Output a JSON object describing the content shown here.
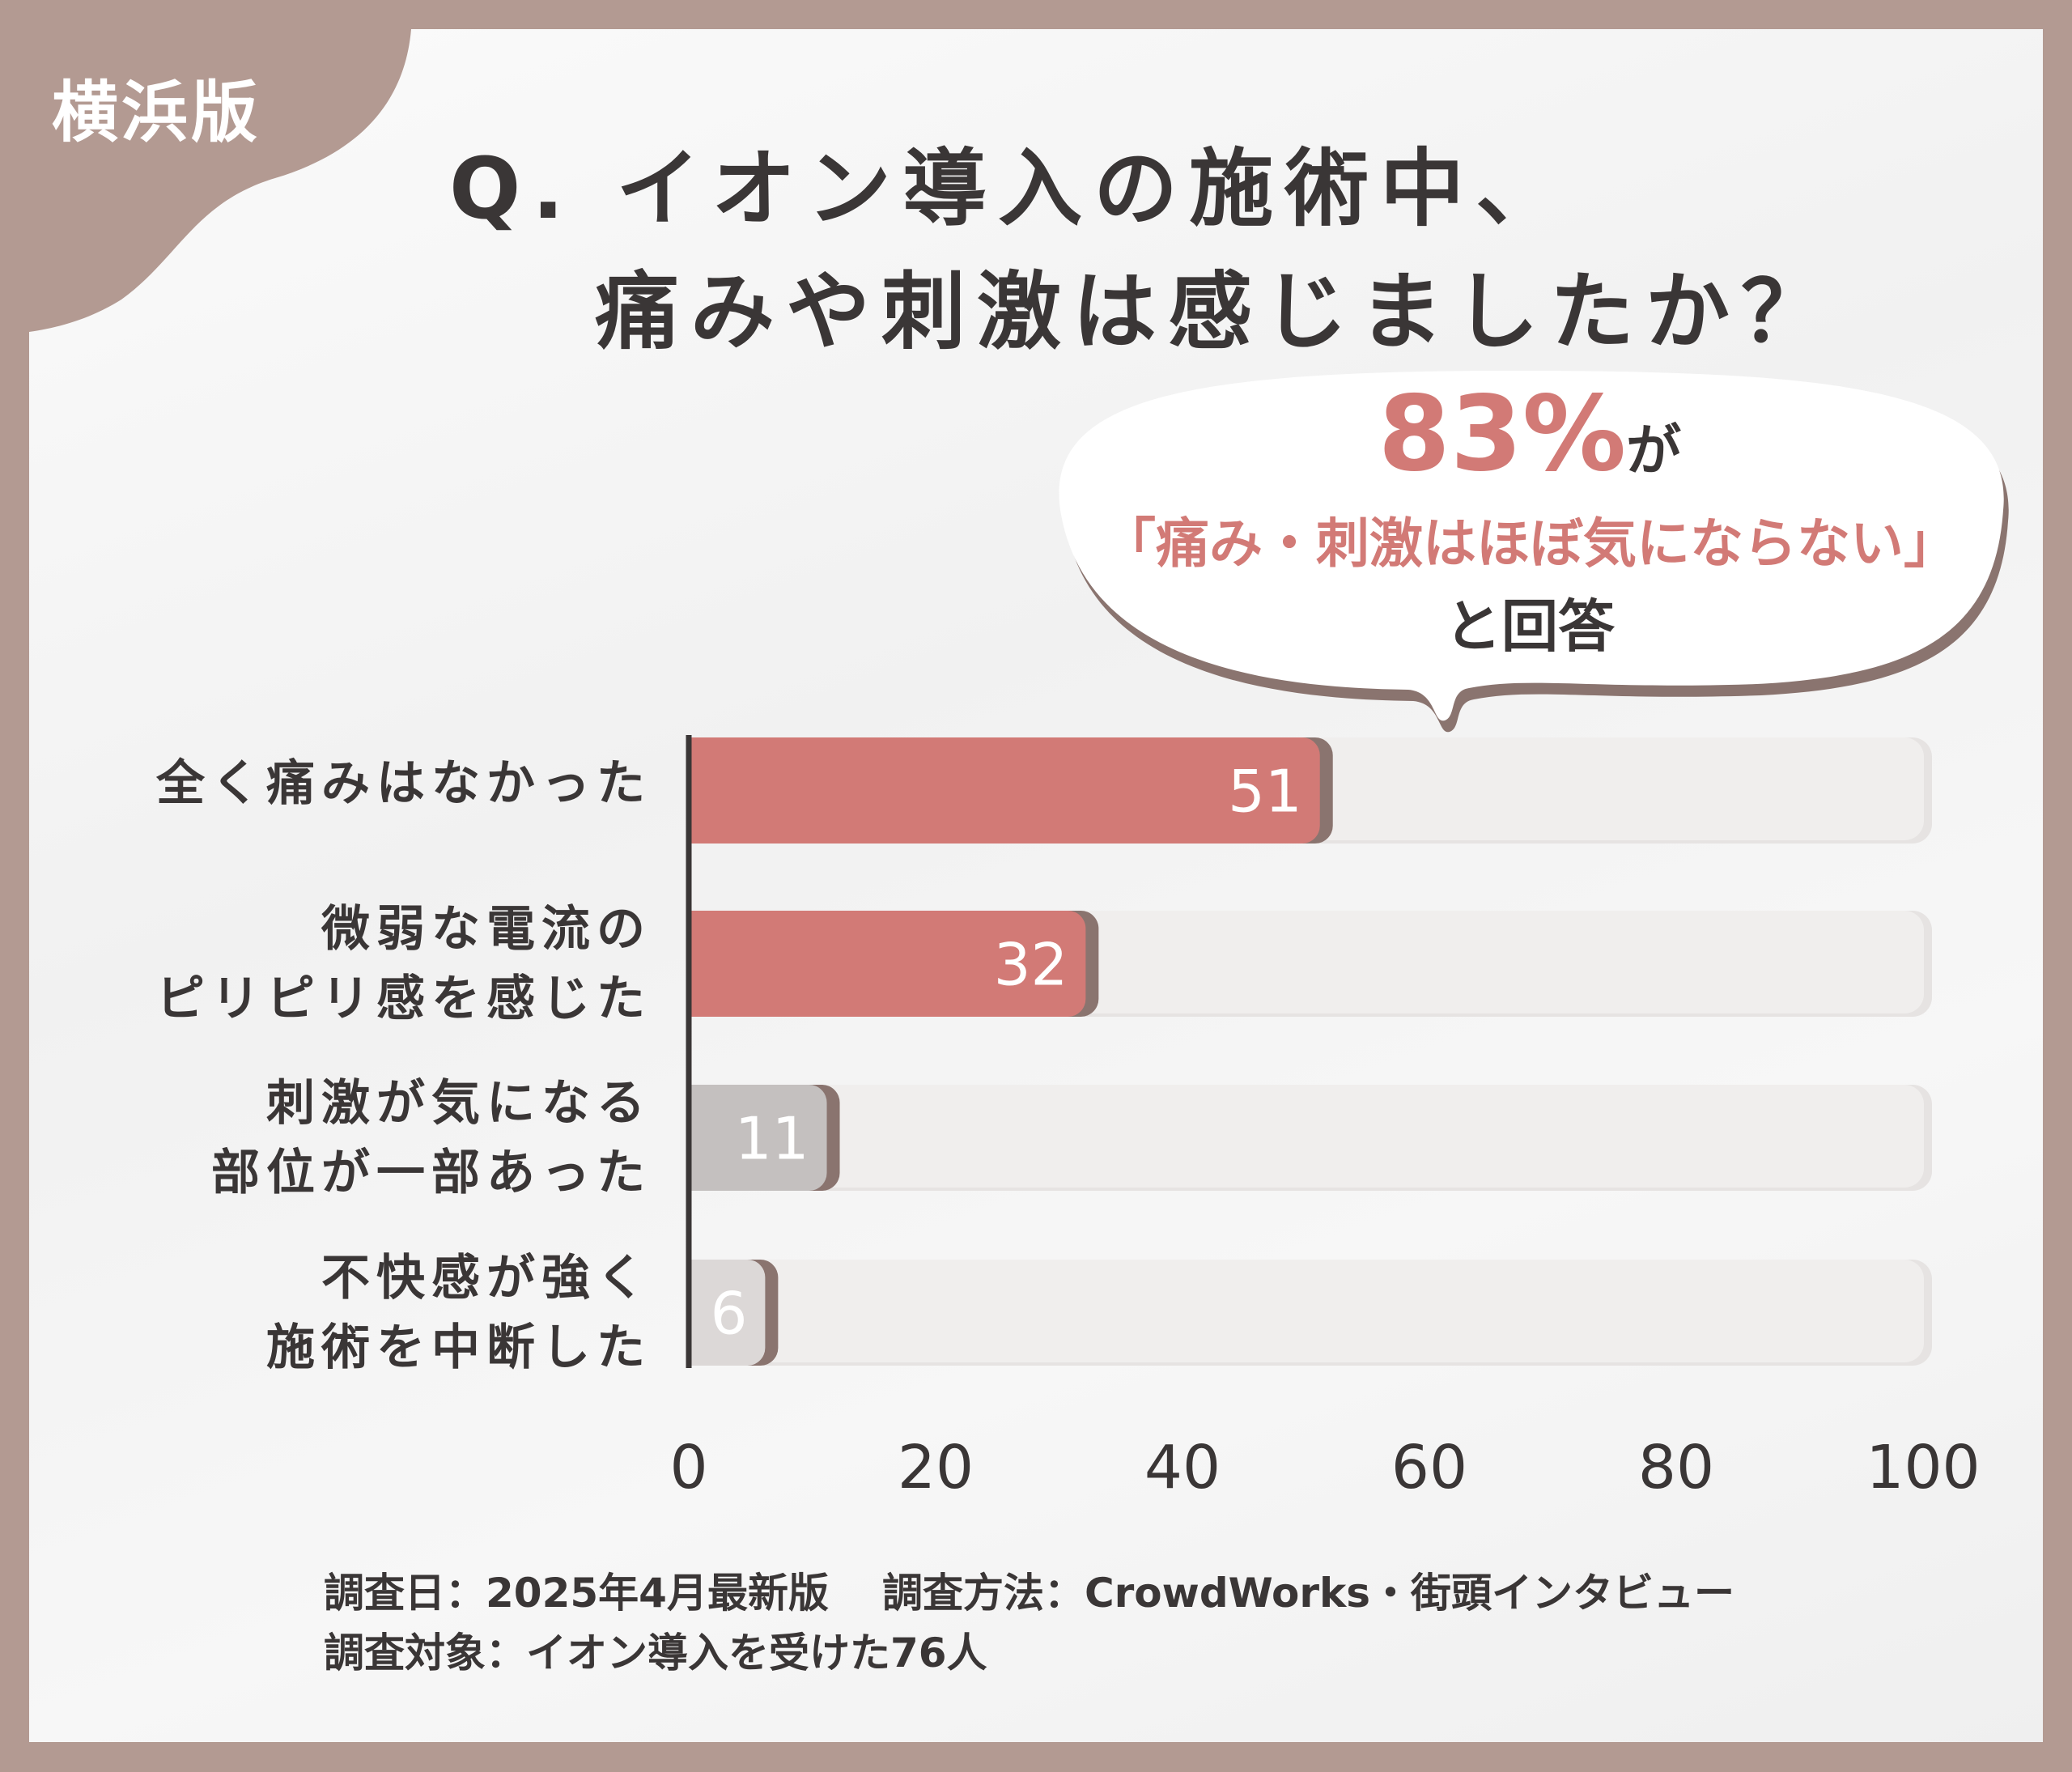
{
  "tag": "横浜版",
  "title": {
    "line1": "Q. イオン導入の施術中、",
    "line2": "痛みや刺激は感じましたか？"
  },
  "callout": {
    "percent": "83%",
    "suffix": "が",
    "quote": "「痛み・刺激はほぼ気にならない」",
    "answer": "と回答"
  },
  "chart_data": {
    "type": "bar",
    "orientation": "horizontal",
    "categories": [
      [
        "全く痛みはなかった"
      ],
      [
        "微弱な電流の",
        "ピリピリ感を感じた"
      ],
      [
        "刺激が気になる",
        "部位が一部あった"
      ],
      [
        "不快感が強く",
        "施術を中断した"
      ]
    ],
    "values": [
      51,
      32,
      11,
      6
    ],
    "data_labels": [
      "51",
      "32",
      "11",
      "6"
    ],
    "xlim": [
      0,
      100
    ],
    "xticks": [
      "0",
      "20",
      "40",
      "60",
      "80",
      "100"
    ],
    "grid": false,
    "colors": [
      "#d27a76",
      "#d27a76",
      "#c4c0bf",
      "#dcd8d7"
    ],
    "track_color": "#f0eeed"
  },
  "footer": {
    "line1a": "調査日：2025年4月最新版",
    "line1b": "調査方法：CrowdWorks・街頭インタビュー",
    "line2": "調査対象：イオン導入を受けた76人"
  },
  "colors": {
    "frame": "#b39a92",
    "accent": "#d27a76",
    "text": "#3a3636"
  }
}
